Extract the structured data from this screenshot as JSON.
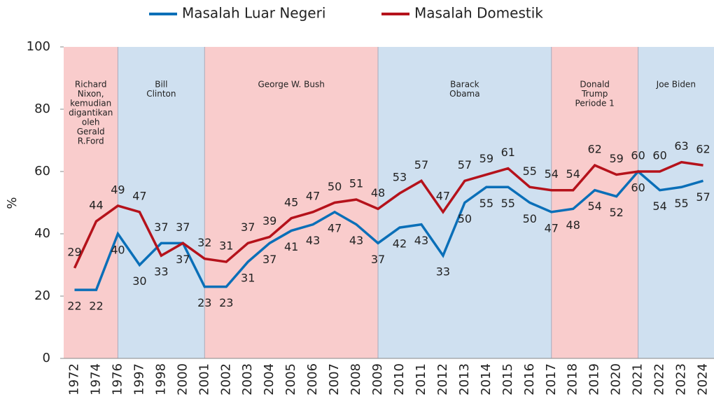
{
  "chart_data": {
    "type": "line",
    "y_label": "%",
    "categories": [
      "1972",
      "1974",
      "1976",
      "1997",
      "1998",
      "2000",
      "2001",
      "2002",
      "2003",
      "2004",
      "2005",
      "2006",
      "2007",
      "2008",
      "2009",
      "2010",
      "2011",
      "2012",
      "2013",
      "2014",
      "2015",
      "2016",
      "2017",
      "2018",
      "2019",
      "2020",
      "2021",
      "2022",
      "2023",
      "2024"
    ],
    "series": [
      {
        "name": "Masalah Luar Negeri",
        "color": "#0a6fb8",
        "values": [
          22,
          22,
          40,
          30,
          37,
          37,
          23,
          23,
          31,
          37,
          41,
          43,
          47,
          43,
          37,
          42,
          43,
          33,
          50,
          55,
          55,
          50,
          47,
          48,
          54,
          52,
          60,
          54,
          55,
          57
        ]
      },
      {
        "name": "Masalah Domestik",
        "color": "#b5121b",
        "values": [
          29,
          44,
          49,
          47,
          33,
          37,
          32,
          31,
          37,
          39,
          45,
          47,
          50,
          51,
          48,
          53,
          57,
          47,
          57,
          59,
          61,
          55,
          54,
          54,
          62,
          59,
          60,
          60,
          63,
          62
        ]
      }
    ],
    "ylim": [
      0,
      100
    ],
    "yticks": [
      0,
      20,
      40,
      60,
      80,
      100
    ],
    "periods": [
      {
        "lines": [
          "Richard",
          "Nixon,",
          "kemudian",
          "digantikan",
          "oleh",
          "Gerald",
          "R.Ford"
        ],
        "start": "1972",
        "end": "1976",
        "color": "#f9cccc"
      },
      {
        "lines": [
          "Bill",
          "Clinton"
        ],
        "start": "1976",
        "end": "2001",
        "color": "#cfe0f0"
      },
      {
        "lines": [
          "George W. Bush"
        ],
        "start": "2001",
        "end": "2009",
        "color": "#f9cccc"
      },
      {
        "lines": [
          "Barack",
          "Obama"
        ],
        "start": "2009",
        "end": "2017",
        "color": "#cfe0f0"
      },
      {
        "lines": [
          "Donald",
          "Trump",
          "Periode 1"
        ],
        "start": "2017",
        "end": "2021",
        "color": "#f9cccc"
      },
      {
        "lines": [
          "Joe Biden"
        ],
        "start": "2021",
        "end": "2024",
        "color": "#cfe0f0"
      }
    ]
  }
}
